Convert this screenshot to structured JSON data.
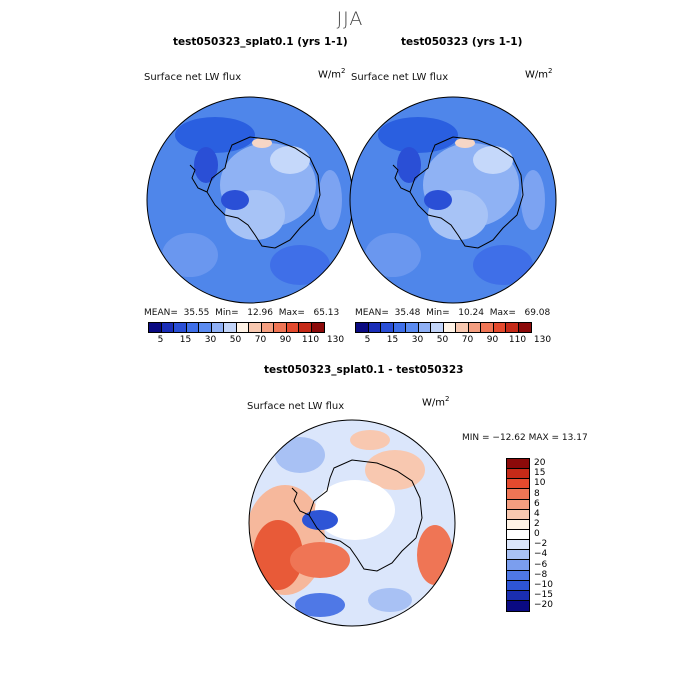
{
  "season": "JJA",
  "panels": {
    "left": {
      "title": "test050323_splat0.1 (yrs 1-1)",
      "variable": "Surface net LW flux",
      "units_base": "W/m",
      "units_exp": "2",
      "mean_label": "MEAN=",
      "mean": "35.55",
      "min_label": "Min=",
      "min": "12.96",
      "max_label": "Max=",
      "max": "65.13"
    },
    "right": {
      "title": "test050323 (yrs 1-1)",
      "variable": "Surface net LW flux",
      "units_base": "W/m",
      "units_exp": "2",
      "mean_label": "MEAN=",
      "mean": "35.48",
      "min_label": "Min=",
      "min": "10.24",
      "max_label": "Max=",
      "max": "69.08"
    },
    "diff": {
      "title": "test050323_splat0.1 - test050323",
      "variable": "Surface net LW flux",
      "units_base": "W/m",
      "units_exp": "2",
      "range_text": "MIN = −12.62 MAX =  13.17"
    }
  },
  "colorbar_top": {
    "colors": [
      "#0a0a82",
      "#1a2eb8",
      "#2a4fd6",
      "#3f6fe8",
      "#5b8bf0",
      "#8fb0f5",
      "#c3d5f9",
      "#fff3e6",
      "#f8c8b0",
      "#f49e80",
      "#ef7555",
      "#e44a2e",
      "#c52a18",
      "#8c0a0a"
    ],
    "tick_labels": [
      "5",
      "15",
      "30",
      "50",
      "70",
      "90",
      "110",
      "130"
    ]
  },
  "colorbar_diff": {
    "colors": [
      "#8c0a0a",
      "#c52a18",
      "#e44a2e",
      "#ef7555",
      "#f49e80",
      "#f8c8b0",
      "#fff3e6",
      "#ffffff",
      "#dbe6fb",
      "#a8c1f4",
      "#7b9eee",
      "#4f78e6",
      "#2e55d6",
      "#1a2eb0",
      "#0a0a82"
    ],
    "tick_labels": [
      "20",
      "15",
      "10",
      "8",
      "6",
      "4",
      "2",
      "0",
      "−2",
      "−4",
      "−6",
      "−8",
      "−10",
      "−15",
      "−20"
    ]
  },
  "colors": {
    "ocean_blue": "#4f86ea",
    "light_blue": "#8fb2f4",
    "pale_blue": "#c5d8fa",
    "warm": "#f6b89c",
    "red": "#e85a38",
    "dark_blue": "#2a4fd6"
  }
}
